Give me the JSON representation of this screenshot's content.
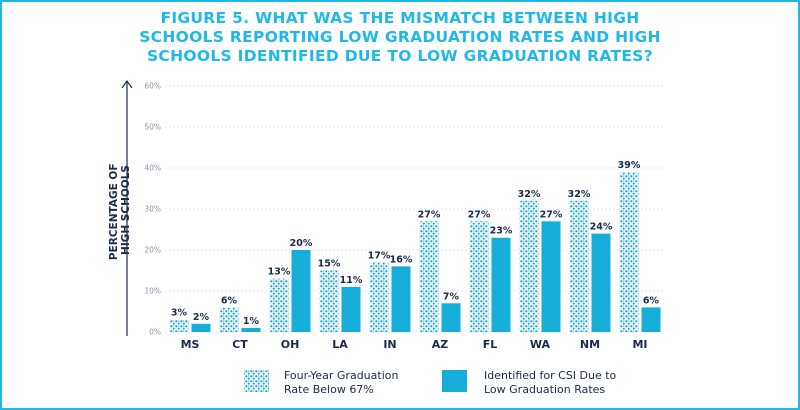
{
  "colors": {
    "accent": "#1fb8e8",
    "bar_solid": "#16aed8",
    "bar_dots": "#1a9fd0",
    "text": "#1b2a4a",
    "grid": "#cfd5df"
  },
  "chart_data": {
    "type": "bar",
    "title_lines": [
      "FIGURE 5. WHAT WAS THE MISMATCH BETWEEN HIGH",
      "SCHOOLS REPORTING LOW GRADUATION RATES AND HIGH",
      "SCHOOLS IDENTIFIED DUE TO LOW GRADUATION RATES?"
    ],
    "ylabel_lines": [
      "PERCENTAGE OF",
      "HIGH SCHOOLS"
    ],
    "ylim": [
      0,
      60
    ],
    "yticks": [
      "0%",
      "10%",
      "20%",
      "30%",
      "40%",
      "50%",
      "60%"
    ],
    "grid": true,
    "legend_position": "bottom",
    "categories": [
      "MS",
      "CT",
      "OH",
      "LA",
      "IN",
      "AZ",
      "FL",
      "WA",
      "NM",
      "MI"
    ],
    "series": [
      {
        "name_lines": [
          "Four-Year Graduation",
          "Rate Below 67%"
        ],
        "pattern": "dotted",
        "values": [
          3,
          6,
          13,
          15,
          17,
          27,
          27,
          32,
          32,
          39
        ],
        "labels": [
          "3%",
          "6%",
          "13%",
          "15%",
          "17%",
          "27%",
          "27%",
          "32%",
          "32%",
          "39%"
        ]
      },
      {
        "name_lines": [
          "Identified for CSI Due to",
          "Low Graduation Rates"
        ],
        "pattern": "solid",
        "values": [
          2,
          1,
          20,
          11,
          16,
          7,
          23,
          27,
          24,
          6
        ],
        "labels": [
          "2%",
          "1%",
          "20%",
          "11%",
          "16%",
          "7%",
          "23%",
          "27%",
          "24%",
          "6%"
        ]
      }
    ]
  }
}
